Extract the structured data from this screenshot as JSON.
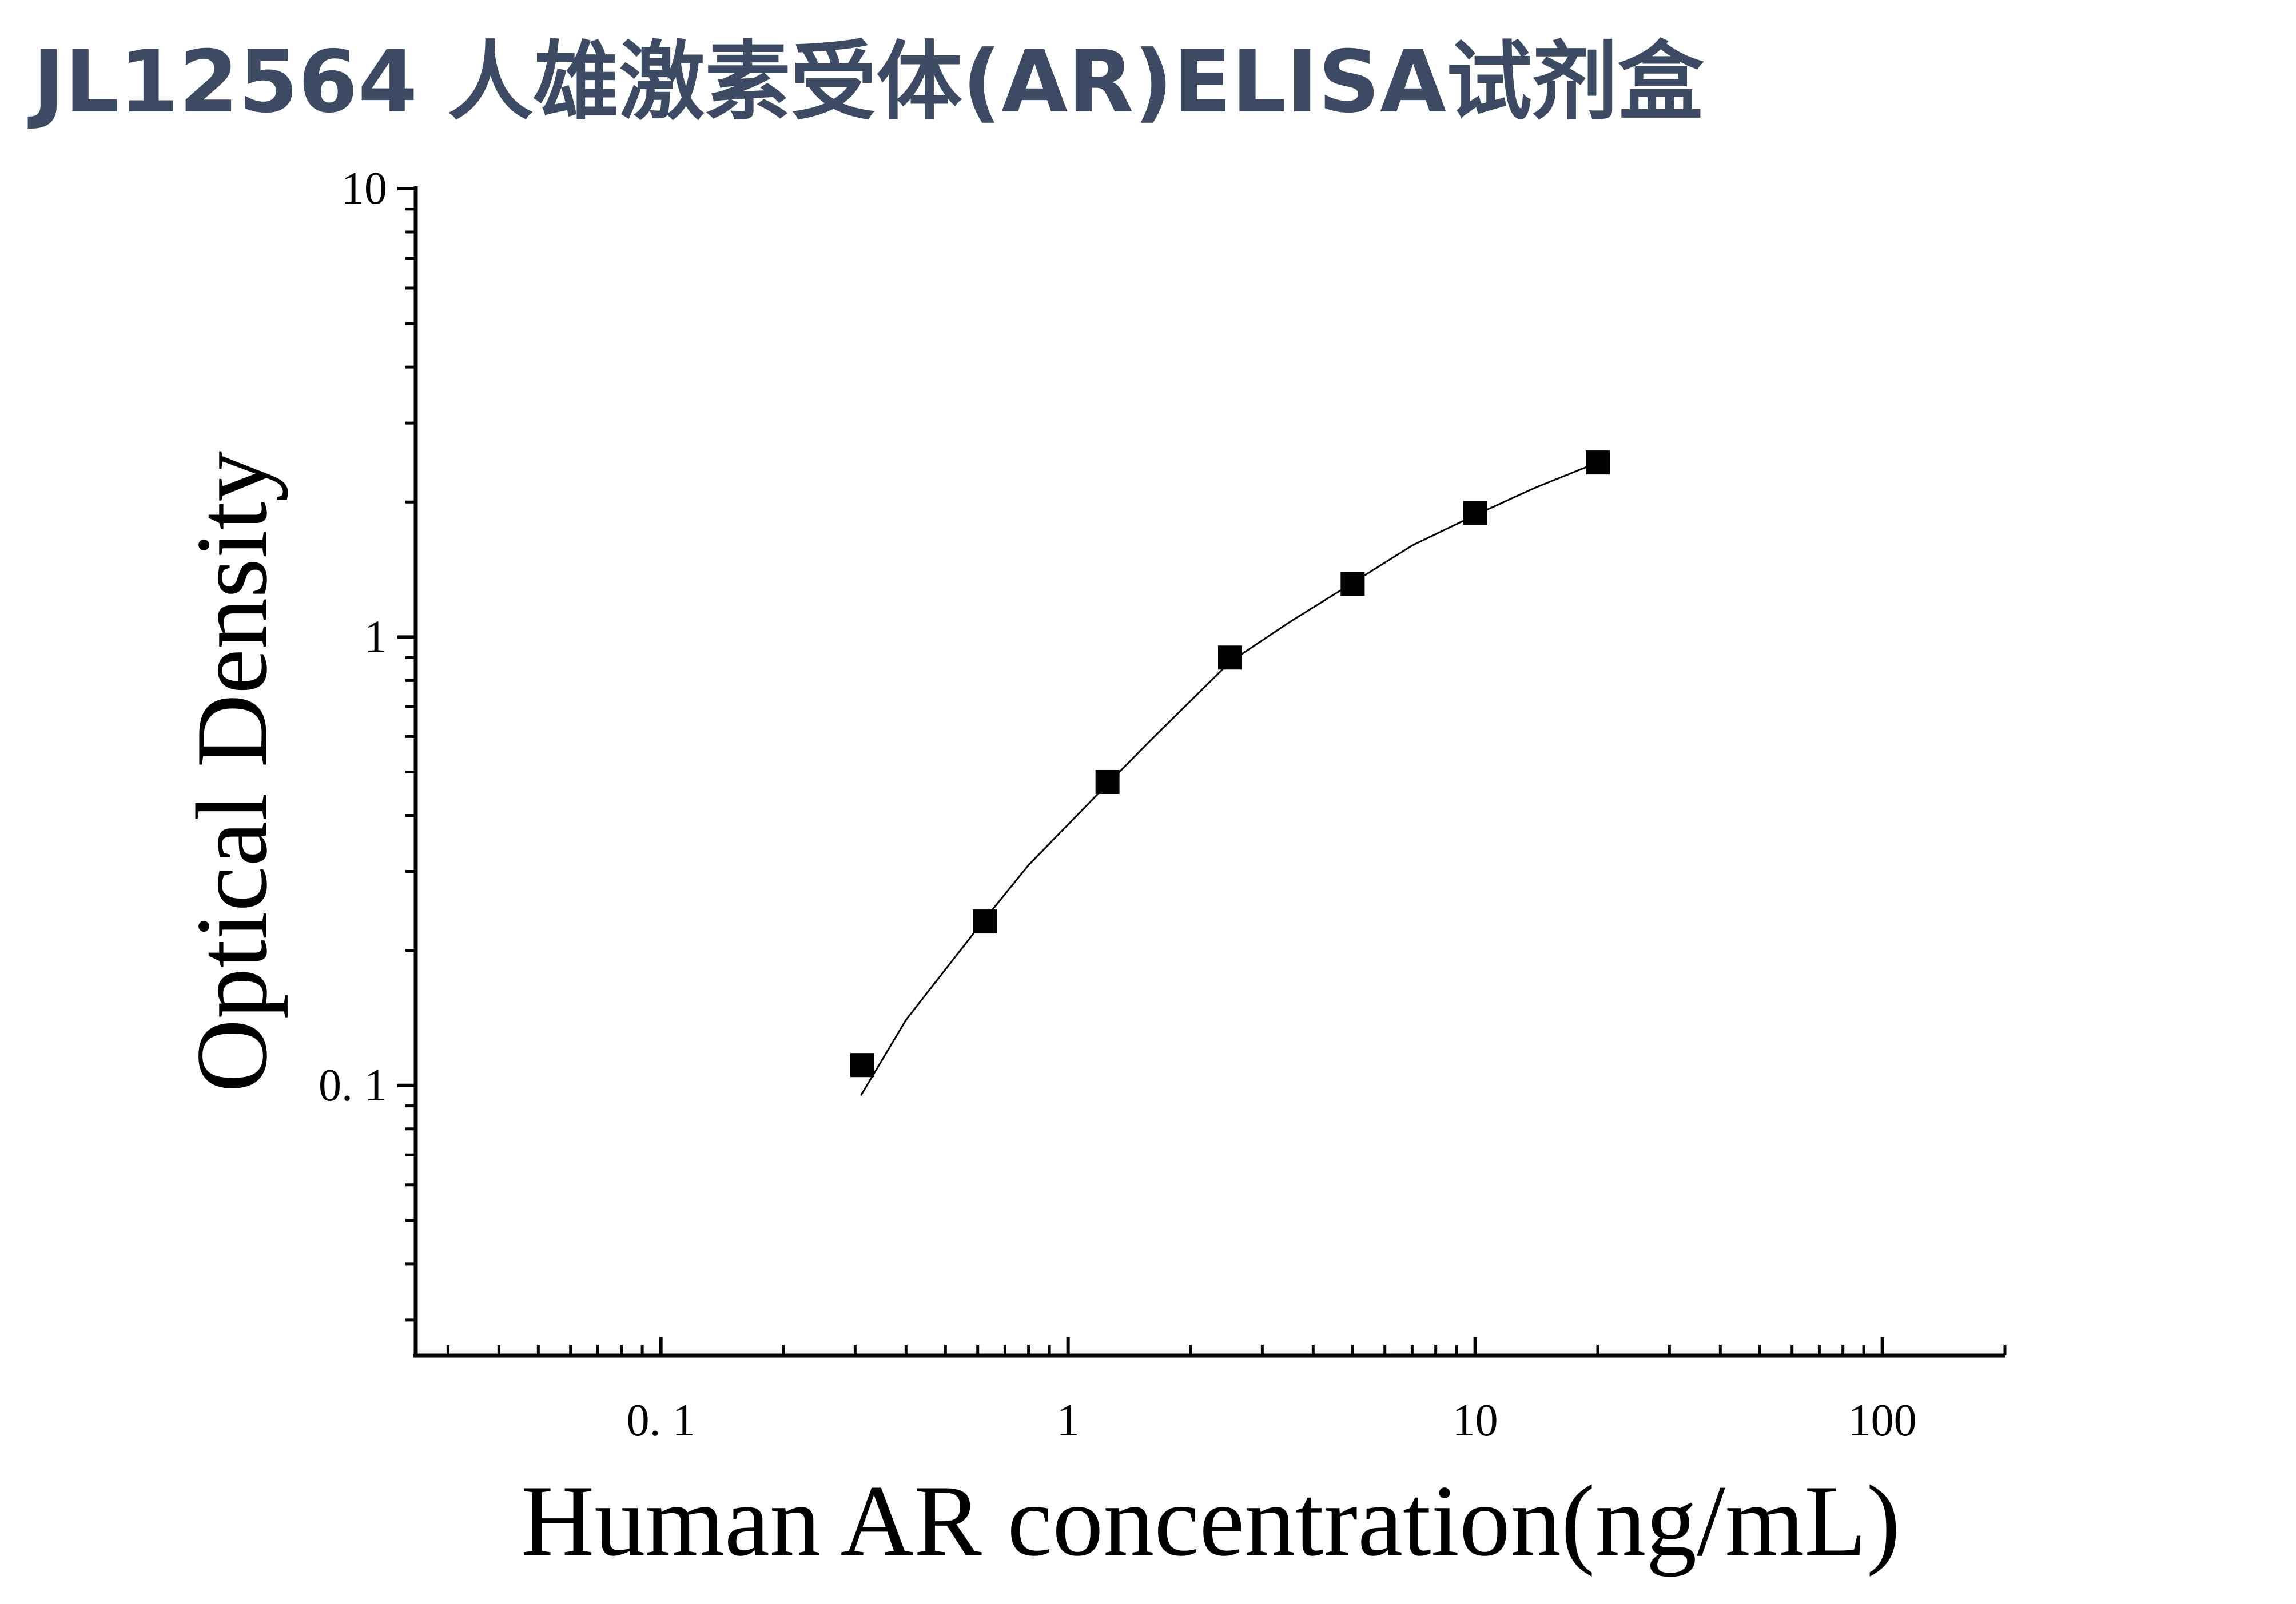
{
  "chart_data": {
    "type": "scatter",
    "title": "JL12564 人雄激素受体(AR)ELISA试剂盒",
    "x_label": "Human AR concentration(ng/mL)",
    "y_label": "Optical Density",
    "x_log": true,
    "y_log": true,
    "minor_ticks": true,
    "grid": false,
    "xlim": [
      0.025,
      200
    ],
    "ylim": [
      0.025,
      10
    ],
    "xticks": [
      {
        "value": 0.1,
        "label": "0. 1"
      },
      1,
      10,
      100
    ],
    "yticks": [
      {
        "value": 0.1,
        "label": "0. 1"
      },
      1,
      10
    ],
    "series": [
      {
        "color": "#000000",
        "x": [
          0.3125,
          0.625,
          1.25,
          2.5,
          5,
          10,
          20
        ],
        "values": [
          0.111,
          0.232,
          0.475,
          0.9,
          1.315,
          1.89,
          2.45
        ]
      }
    ],
    "fit": {
      "color": "#000000",
      "x": [
        0.31,
        0.4,
        0.625,
        0.8,
        1.25,
        1.6,
        2.5,
        3.5,
        5,
        7,
        10,
        14,
        20
      ],
      "y": [
        0.095,
        0.14,
        0.235,
        0.31,
        0.47,
        0.59,
        0.88,
        1.08,
        1.32,
        1.6,
        1.87,
        2.15,
        2.45
      ]
    }
  }
}
